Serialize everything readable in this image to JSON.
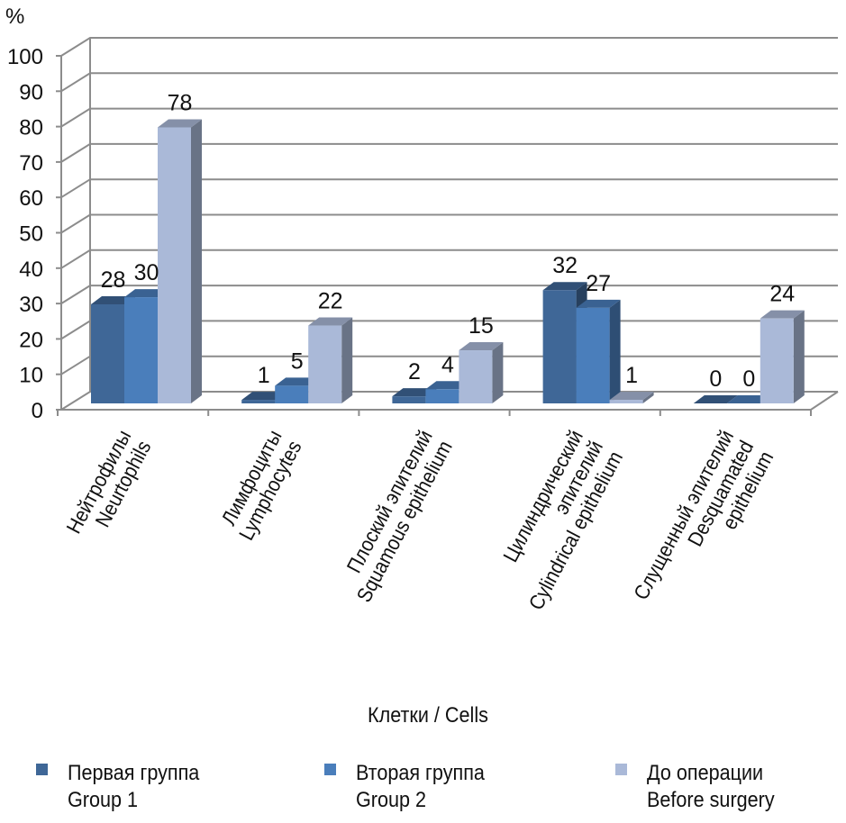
{
  "chart_data": {
    "type": "bar",
    "title": "",
    "ylabel": "%",
    "xlabel": "Клетки / Cells",
    "ylim": [
      0,
      100
    ],
    "yticks": [
      "0",
      "10",
      "20",
      "30",
      "40",
      "50",
      "60",
      "70",
      "80",
      "90",
      "100"
    ],
    "grid": true,
    "legend_position": "bottom",
    "categories": [
      [
        "Нейтрофилы",
        "Neurtophils"
      ],
      [
        "Лимфоциты",
        "Lymphocytes"
      ],
      [
        "Плоский эпителий",
        "Squamous epithelium"
      ],
      [
        "Цилиндрический",
        "эпителий",
        "Cylindrical epithelium"
      ],
      [
        "Слущенный эпителий",
        "Desquamated",
        "epithelium"
      ]
    ],
    "series": [
      {
        "name": [
          "Первая группа",
          "Group 1"
        ],
        "values": [
          28,
          1,
          2,
          32,
          0
        ],
        "color": "#3f6797"
      },
      {
        "name": [
          "Вторая группа",
          "Group 2"
        ],
        "values": [
          30,
          5,
          4,
          27,
          0
        ],
        "color": "#4a7ebb"
      },
      {
        "name": [
          "До операции",
          "Before surgery"
        ],
        "values": [
          78,
          22,
          15,
          1,
          24
        ],
        "color": "#aab9d8"
      }
    ]
  }
}
